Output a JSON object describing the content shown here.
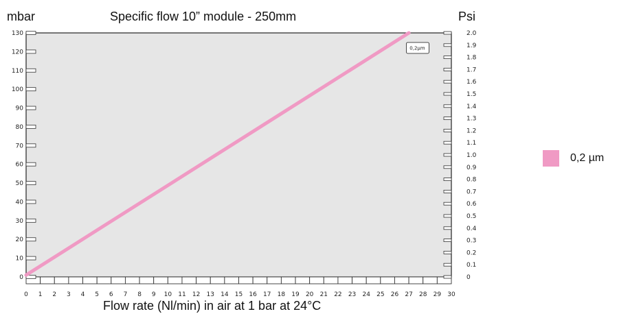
{
  "chart_data": {
    "type": "line",
    "title": "Specific flow 10” module - 250mm",
    "xlabel": "Flow rate (Nl/min) in air at 1 bar at 24°C",
    "ylabel": "mbar",
    "y2label": "Psi",
    "xlim": [
      0,
      30
    ],
    "ylim": [
      0,
      130
    ],
    "y2lim": [
      0,
      2.0
    ],
    "x_ticks": [
      "0",
      "1",
      "2",
      "3",
      "4",
      "5",
      "6",
      "7",
      "8",
      "9",
      "10",
      "11",
      "12",
      "13",
      "14",
      "15",
      "16",
      "17",
      "18",
      "19",
      "20",
      "21",
      "22",
      "23",
      "24",
      "25",
      "26",
      "27",
      "28",
      "29",
      "30"
    ],
    "y_ticks": [
      "0",
      "10",
      "20",
      "30",
      "40",
      "50",
      "60",
      "70",
      "80",
      "90",
      "100",
      "110",
      "120",
      "130"
    ],
    "y2_ticks": [
      "0",
      "0.1",
      "0.2",
      "0.3",
      "0.4",
      "0.5",
      "0.6",
      "0.7",
      "0.8",
      "0.9",
      "1.0",
      "1.1",
      "1.2",
      "1.3",
      "1.4",
      "1.5",
      "1.6",
      "1.7",
      "1.8",
      "1.9",
      "2.0"
    ],
    "series": [
      {
        "name": "0,2 µm",
        "color": "#f09ac4",
        "x": [
          0,
          27
        ],
        "y": [
          1,
          130
        ]
      }
    ],
    "annotation": {
      "text": "0,2µm",
      "x": 27.6,
      "y": 122
    },
    "grid": false,
    "plot_background": "#e6e6e6",
    "legend_position": "right",
    "legend": [
      {
        "label": "0,2 µm",
        "color": "#f09ac4"
      }
    ]
  }
}
